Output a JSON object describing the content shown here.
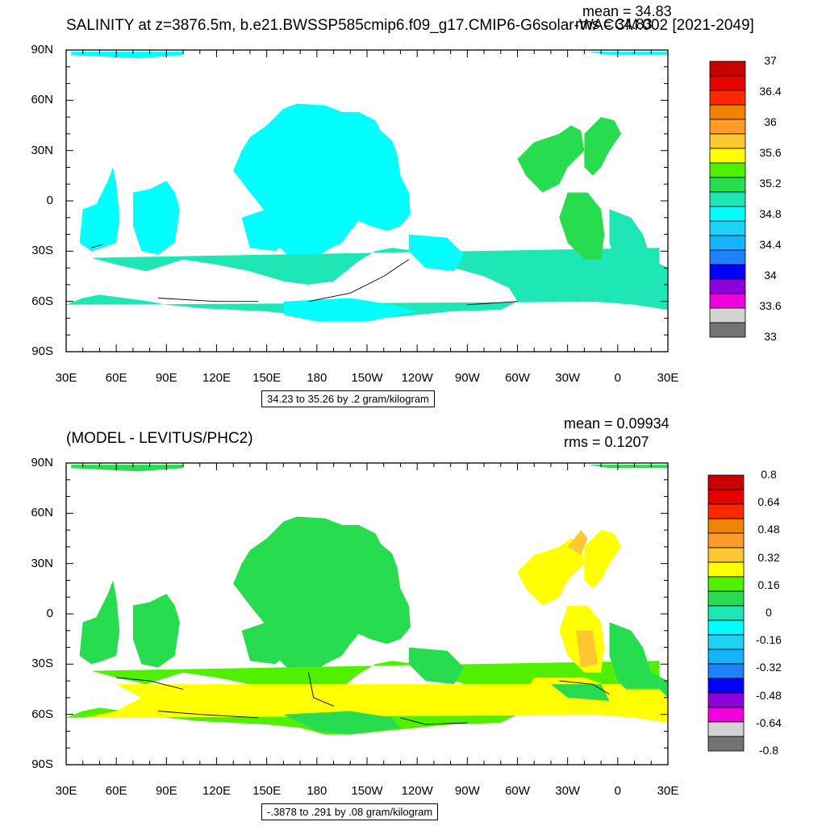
{
  "chart_data": [
    {
      "type": "heatmap",
      "title": "SALINITY at z=3876.5m, b.e21.BWSSP585cmip6.f09_g17.CMIP6-G6solar-WACCM.002 [2021-2049]",
      "stats": {
        "mean": "mean = 34.83",
        "rms": "rms = 34.83"
      },
      "x_ticks": [
        "30E",
        "60E",
        "90E",
        "120E",
        "150E",
        "180",
        "150W",
        "120W",
        "90W",
        "60W",
        "30W",
        "0",
        "30E"
      ],
      "y_ticks": [
        "90N",
        "60N",
        "30N",
        "0",
        "30S",
        "60S",
        "90S"
      ],
      "info": "34.23 to 35.26 by .2 gram/kilogram",
      "colorbar_labels": [
        "37",
        "36.4",
        "36",
        "35.6",
        "35.2",
        "34.8",
        "34.4",
        "34",
        "33.6",
        "33"
      ],
      "colorbar_colors": [
        "#c80000",
        "#e60000",
        "#ff2800",
        "#f08200",
        "#ff9b28",
        "#ffc832",
        "#ffff00",
        "#50f000",
        "#28dc50",
        "#1ee6b4",
        "#00ffff",
        "#1ed2f5",
        "#14b4ff",
        "#1e82ff",
        "#0000ff",
        "#8c00dc",
        "#f000dc",
        "#d2d2d2",
        "#737373"
      ],
      "field_colors": {
        "cyan": "#00ffff",
        "teal": "#1ee6b4",
        "green": "#28dc50"
      }
    },
    {
      "type": "heatmap",
      "title": "(MODEL - LEVITUS/PHC2)",
      "stats": {
        "mean": "mean = 0.09934",
        "rms": "rms = 0.1207"
      },
      "x_ticks": [
        "30E",
        "60E",
        "90E",
        "120E",
        "150E",
        "180",
        "150W",
        "120W",
        "90W",
        "60W",
        "30W",
        "0",
        "30E"
      ],
      "y_ticks": [
        "90N",
        "60N",
        "30N",
        "0",
        "30S",
        "60S",
        "90S"
      ],
      "info": "-.3878 to .291 by .08 gram/kilogram",
      "colorbar_labels": [
        "0.8",
        "0.64",
        "0.48",
        "0.32",
        "0.16",
        "0",
        "-0.16",
        "-0.32",
        "-0.48",
        "-0.64",
        "-0.8"
      ],
      "colorbar_colors": [
        "#c80000",
        "#e60000",
        "#ff2800",
        "#f08200",
        "#ff9b28",
        "#ffc832",
        "#ffff00",
        "#50f000",
        "#28dc50",
        "#1ee6b4",
        "#00ffff",
        "#1ed2f5",
        "#14b4ff",
        "#1e82ff",
        "#0000ff",
        "#8c00dc",
        "#f000dc",
        "#d2d2d2",
        "#737373"
      ],
      "field_colors": {
        "green": "#28dc50",
        "lime": "#50f000",
        "yellow": "#ffff00",
        "gold": "#ffc832",
        "tan": "#e6b450"
      }
    }
  ]
}
